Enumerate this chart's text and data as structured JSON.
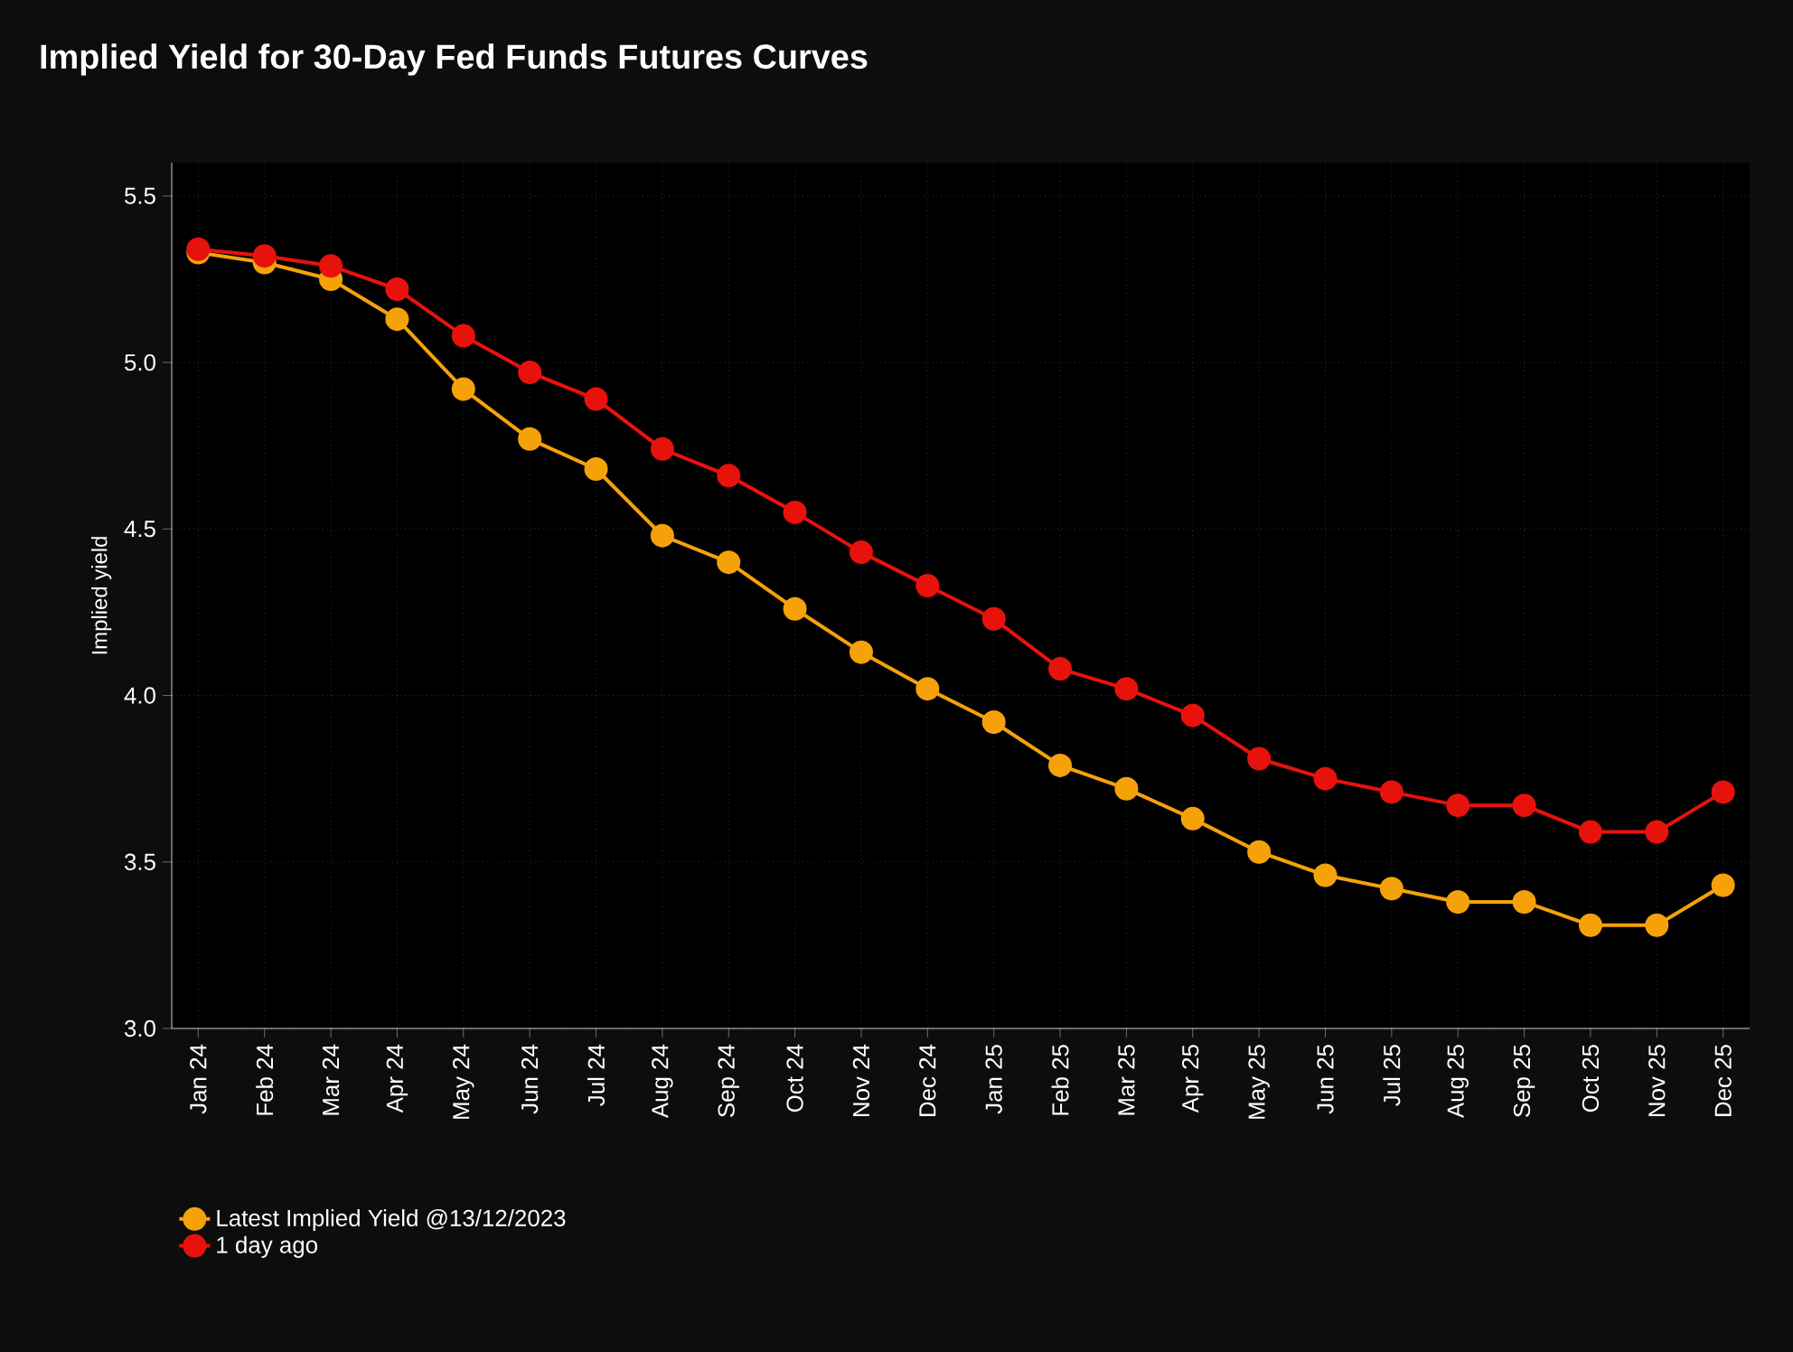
{
  "chart_data": {
    "type": "line",
    "title": "Implied Yield for 30-Day Fed Funds Futures Curves",
    "ylabel": "Implied yield",
    "categories": [
      "Jan 24",
      "Feb 24",
      "Mar 24",
      "Apr 24",
      "May 24",
      "Jun 24",
      "Jul 24",
      "Aug 24",
      "Sep 24",
      "Oct 24",
      "Nov 24",
      "Dec 24",
      "Jan 25",
      "Feb 25",
      "Mar 25",
      "Apr 25",
      "May 25",
      "Jun 25",
      "Jul 25",
      "Aug 25",
      "Sep 25",
      "Oct 25",
      "Nov 25",
      "Dec 25"
    ],
    "series": [
      {
        "name": "Latest Implied Yield @13/12/2023",
        "color": "#f5a20a",
        "values": [
          5.33,
          5.3,
          5.25,
          5.13,
          4.92,
          4.77,
          4.68,
          4.48,
          4.4,
          4.26,
          4.13,
          4.02,
          3.92,
          3.79,
          3.72,
          3.63,
          3.53,
          3.46,
          3.42,
          3.38,
          3.38,
          3.31,
          3.31,
          3.43
        ]
      },
      {
        "name": "1 day ago",
        "color": "#e8120c",
        "values": [
          5.34,
          5.32,
          5.29,
          5.22,
          5.08,
          4.97,
          4.89,
          4.74,
          4.66,
          4.55,
          4.43,
          4.33,
          4.23,
          4.08,
          4.02,
          3.94,
          3.81,
          3.75,
          3.71,
          3.67,
          3.67,
          3.59,
          3.59,
          3.71
        ]
      }
    ],
    "ylim": [
      3.0,
      5.6
    ],
    "yticks": [
      {
        "value": 3.0,
        "label": "3.0"
      },
      {
        "value": 3.5,
        "label": "3.5"
      },
      {
        "value": 4.0,
        "label": "4.0"
      },
      {
        "value": 4.5,
        "label": "4.5"
      },
      {
        "value": 5.0,
        "label": "5.0"
      },
      {
        "value": 5.5,
        "label": "5.5"
      }
    ],
    "grid": true,
    "legend": "bottom left",
    "marker": "circle",
    "line_style": "solid"
  }
}
